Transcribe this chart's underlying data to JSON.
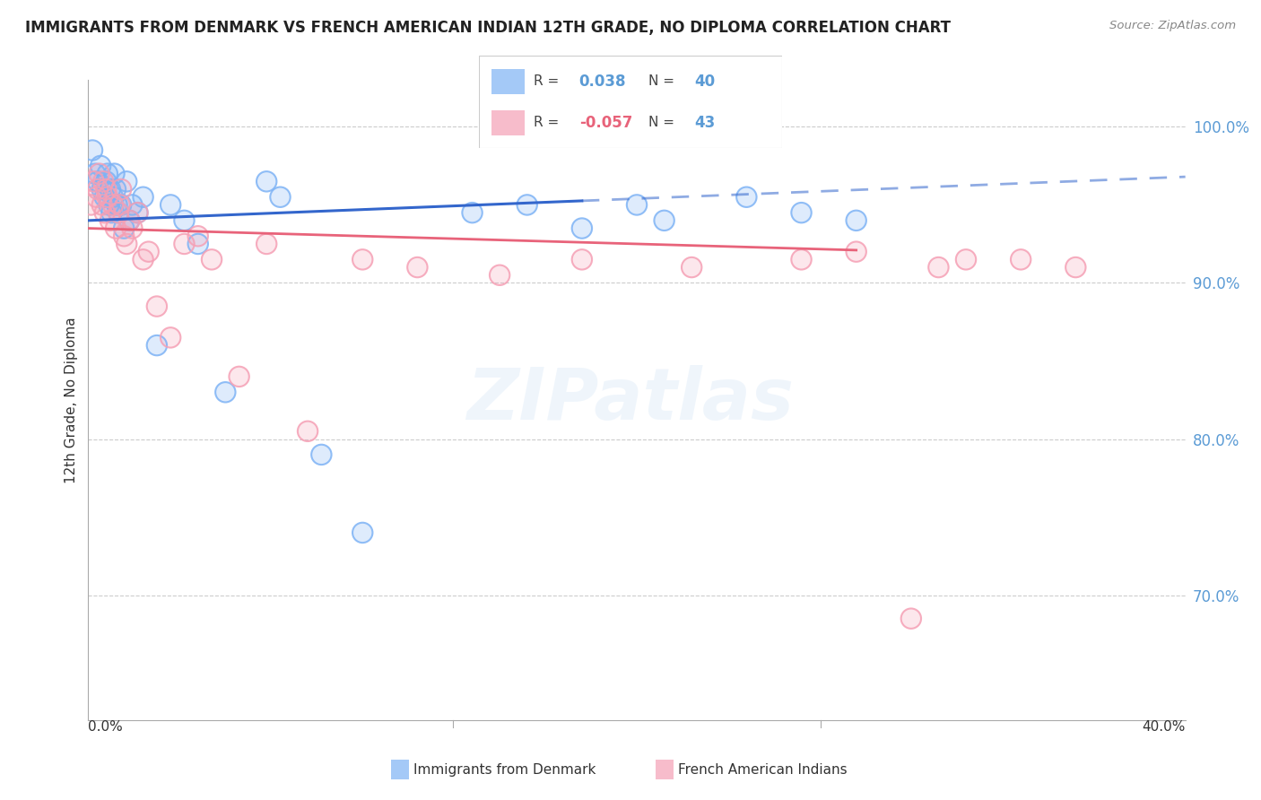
{
  "title": "IMMIGRANTS FROM DENMARK VS FRENCH AMERICAN INDIAN 12TH GRADE, NO DIPLOMA CORRELATION CHART",
  "source": "Source: ZipAtlas.com",
  "ylabel": "12th Grade, No Diploma",
  "x_min": 0.0,
  "x_max": 40.0,
  "y_min": 62.0,
  "y_max": 103.0,
  "ytick_vals": [
    70,
    80,
    90,
    100
  ],
  "ytick_labels": [
    "70.0%",
    "80.0%",
    "90.0%",
    "100.0%"
  ],
  "legend_blue_label": "Immigrants from Denmark",
  "legend_pink_label": "French American Indians",
  "R_blue": 0.038,
  "N_blue": 40,
  "R_pink": -0.057,
  "N_pink": 43,
  "blue_color": "#7EB3F5",
  "pink_color": "#F5A0B5",
  "blue_line_color": "#3366CC",
  "pink_line_color": "#E8637A",
  "blue_line_y0": 94.0,
  "blue_line_y1": 96.8,
  "blue_solid_x_end": 18.0,
  "pink_line_y0": 93.5,
  "pink_line_y1": 91.5,
  "pink_solid_x_end": 28.0,
  "blue_x": [
    0.15,
    0.25,
    0.35,
    0.45,
    0.5,
    0.6,
    0.65,
    0.7,
    0.75,
    0.8,
    0.85,
    0.9,
    0.95,
    1.0,
    1.05,
    1.1,
    1.2,
    1.3,
    1.4,
    1.5,
    1.6,
    1.8,
    2.0,
    2.5,
    3.0,
    3.5,
    4.0,
    5.0,
    6.5,
    7.0,
    8.5,
    10.0,
    14.0,
    16.0,
    18.0,
    20.0,
    21.0,
    24.0,
    26.0,
    28.0
  ],
  "blue_y": [
    98.5,
    97.0,
    96.5,
    97.5,
    96.0,
    95.5,
    96.5,
    97.0,
    95.0,
    96.0,
    94.5,
    95.5,
    97.0,
    96.0,
    95.0,
    94.5,
    95.0,
    93.5,
    96.5,
    94.0,
    95.0,
    94.5,
    95.5,
    86.0,
    95.0,
    94.0,
    92.5,
    83.0,
    96.5,
    95.5,
    79.0,
    74.0,
    94.5,
    95.0,
    93.5,
    95.0,
    94.0,
    95.5,
    94.5,
    94.0
  ],
  "pink_x": [
    0.1,
    0.2,
    0.3,
    0.35,
    0.4,
    0.5,
    0.55,
    0.6,
    0.65,
    0.7,
    0.8,
    0.9,
    1.0,
    1.1,
    1.15,
    1.2,
    1.3,
    1.4,
    1.5,
    1.6,
    1.8,
    2.0,
    2.2,
    2.5,
    3.0,
    3.5,
    4.0,
    4.5,
    5.5,
    6.5,
    8.0,
    10.0,
    12.0,
    15.0,
    18.0,
    22.0,
    26.0,
    28.0,
    30.0,
    31.0,
    32.0,
    34.0,
    36.0
  ],
  "pink_y": [
    95.0,
    96.5,
    95.5,
    96.0,
    97.0,
    95.0,
    96.5,
    94.5,
    96.0,
    95.5,
    94.0,
    95.0,
    93.5,
    94.5,
    95.0,
    96.0,
    93.0,
    92.5,
    94.0,
    93.5,
    94.5,
    91.5,
    92.0,
    88.5,
    86.5,
    92.5,
    93.0,
    91.5,
    84.0,
    92.5,
    80.5,
    91.5,
    91.0,
    90.5,
    91.5,
    91.0,
    91.5,
    92.0,
    68.5,
    91.0,
    91.5,
    91.5,
    91.0
  ]
}
